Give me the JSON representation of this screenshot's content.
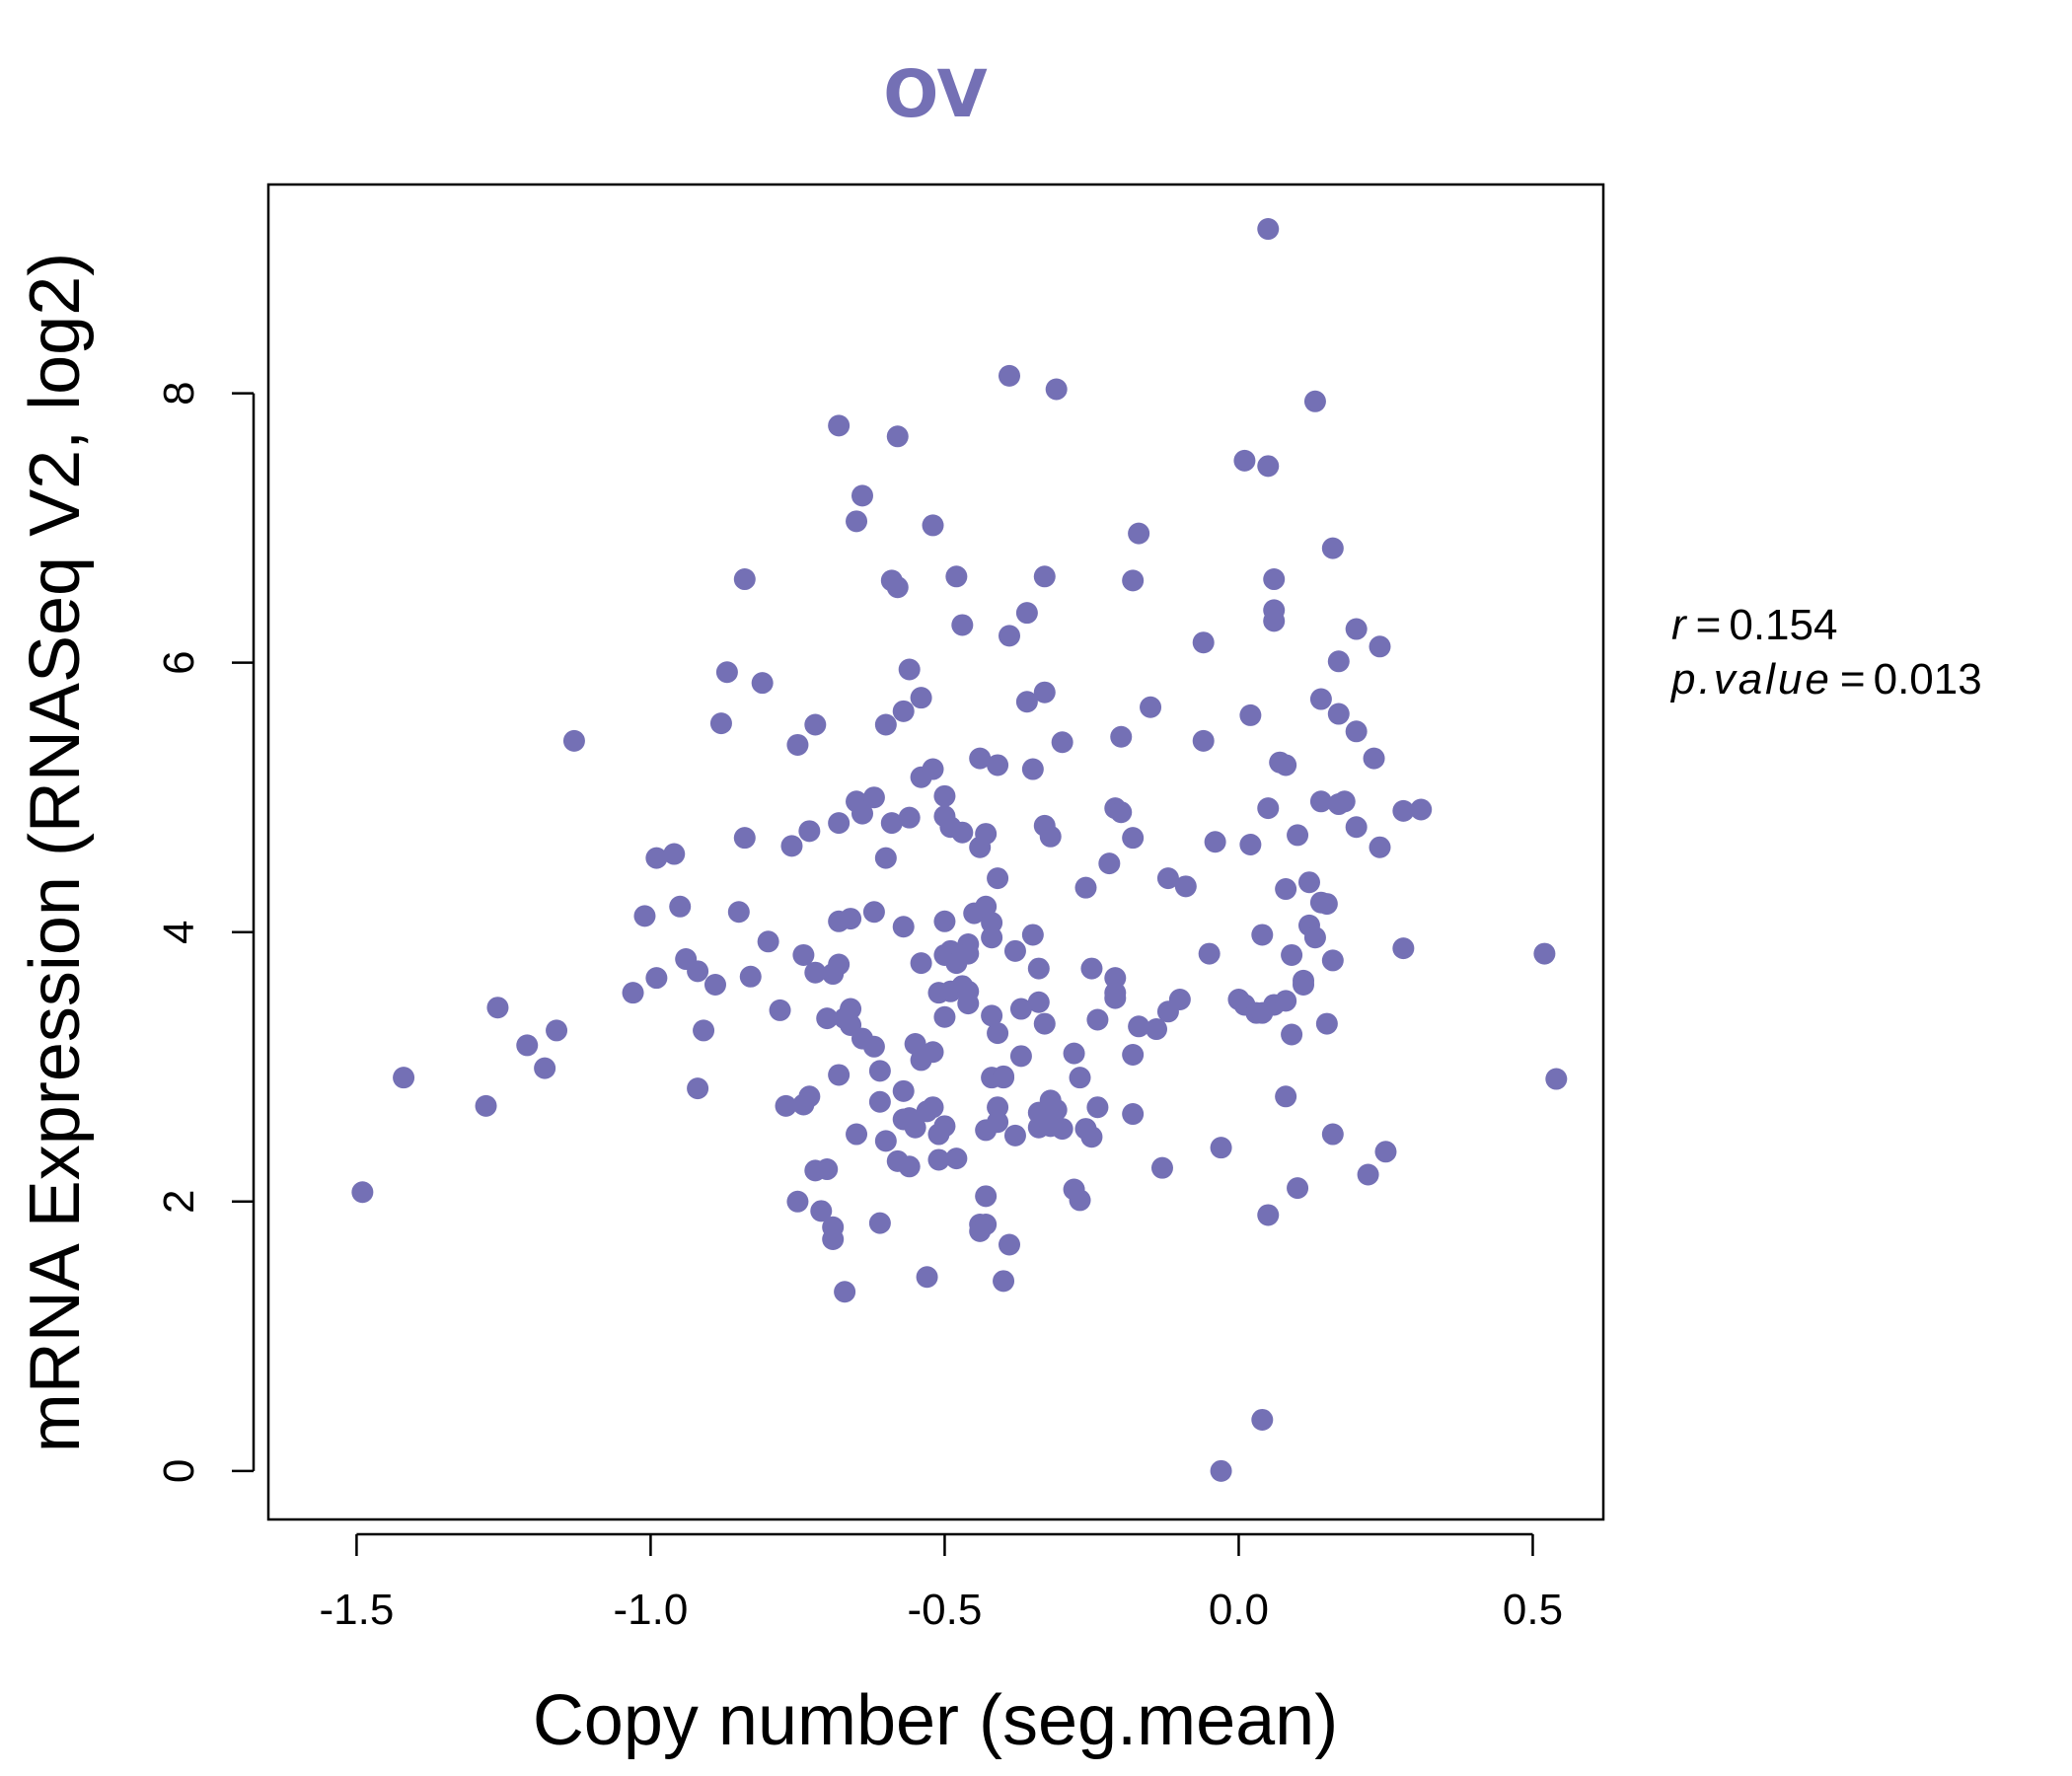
{
  "chart_data": {
    "type": "scatter",
    "title": "OV",
    "xlabel": "Copy number (seg.mean)",
    "ylabel": "mRNA Expression (RNASeq V2, log2)",
    "xlim": [
      -1.65,
      0.62
    ],
    "ylim": [
      -0.36,
      9.55
    ],
    "x_ticks": [
      -1.5,
      -1.0,
      -0.5,
      0.0,
      0.5
    ],
    "x_tick_labels": [
      "-1.5",
      "-1.0",
      "-0.5",
      "0.0",
      "0.5"
    ],
    "y_ticks": [
      0,
      2,
      4,
      6,
      8
    ],
    "y_tick_labels": [
      "0",
      "2",
      "4",
      "6",
      "8"
    ],
    "grid": false,
    "legend": "none",
    "colors": {
      "title": "#7470b5",
      "points": "#7470b5",
      "axes": "#000000"
    },
    "annotation": {
      "r_label": "r",
      "r_value": "0.154",
      "p_label": "p.value",
      "p_value": "0.013",
      "equals": "="
    },
    "series": [
      {
        "points": [
          [
            -1.49,
            2.07
          ],
          [
            -1.42,
            2.92
          ],
          [
            -1.28,
            2.71
          ],
          [
            -1.26,
            3.44
          ],
          [
            -1.21,
            3.16
          ],
          [
            -1.18,
            2.99
          ],
          [
            -1.16,
            3.27
          ],
          [
            -1.13,
            5.42
          ],
          [
            -1.03,
            3.55
          ],
          [
            -1.01,
            4.12
          ],
          [
            -0.99,
            4.55
          ],
          [
            -0.99,
            3.66
          ],
          [
            -0.96,
            4.58
          ],
          [
            -0.95,
            4.19
          ],
          [
            -0.94,
            3.8
          ],
          [
            -0.92,
            3.71
          ],
          [
            -0.92,
            2.84
          ],
          [
            -0.91,
            3.27
          ],
          [
            -0.89,
            3.61
          ],
          [
            -0.88,
            5.55
          ],
          [
            -0.87,
            5.93
          ],
          [
            -0.85,
            4.15
          ],
          [
            -0.84,
            6.62
          ],
          [
            -0.84,
            4.7
          ],
          [
            -0.83,
            3.67
          ],
          [
            -0.81,
            5.85
          ],
          [
            -0.8,
            3.93
          ],
          [
            -0.78,
            3.42
          ],
          [
            -0.77,
            2.71
          ],
          [
            -0.76,
            4.64
          ],
          [
            -0.75,
            5.39
          ],
          [
            -0.75,
            2.0
          ],
          [
            -0.74,
            3.83
          ],
          [
            -0.74,
            2.72
          ],
          [
            -0.73,
            4.75
          ],
          [
            -0.73,
            2.78
          ],
          [
            -0.72,
            3.7
          ],
          [
            -0.72,
            2.23
          ],
          [
            -0.72,
            5.54
          ],
          [
            -0.71,
            1.93
          ],
          [
            -0.7,
            2.24
          ],
          [
            -0.7,
            3.36
          ],
          [
            -0.69,
            3.69
          ],
          [
            -0.69,
            1.81
          ],
          [
            -0.69,
            1.72
          ],
          [
            -0.68,
            7.76
          ],
          [
            -0.68,
            4.81
          ],
          [
            -0.68,
            4.08
          ],
          [
            -0.68,
            3.76
          ],
          [
            -0.68,
            2.94
          ],
          [
            -0.67,
            3.36
          ],
          [
            -0.67,
            1.33
          ],
          [
            -0.66,
            3.43
          ],
          [
            -0.66,
            3.31
          ],
          [
            -0.66,
            4.1
          ],
          [
            -0.65,
            4.97
          ],
          [
            -0.65,
            7.05
          ],
          [
            -0.65,
            2.5
          ],
          [
            -0.64,
            7.24
          ],
          [
            -0.64,
            4.88
          ],
          [
            -0.64,
            3.21
          ],
          [
            -0.62,
            3.15
          ],
          [
            -0.62,
            4.15
          ],
          [
            -0.62,
            5.0
          ],
          [
            -0.61,
            2.97
          ],
          [
            -0.61,
            2.74
          ],
          [
            -0.61,
            1.84
          ],
          [
            -0.6,
            2.45
          ],
          [
            -0.6,
            5.54
          ],
          [
            -0.6,
            4.55
          ],
          [
            -0.59,
            6.61
          ],
          [
            -0.59,
            4.81
          ],
          [
            -0.58,
            7.68
          ],
          [
            -0.58,
            6.56
          ],
          [
            -0.58,
            2.3
          ],
          [
            -0.57,
            5.64
          ],
          [
            -0.57,
            4.04
          ],
          [
            -0.57,
            2.82
          ],
          [
            -0.57,
            2.61
          ],
          [
            -0.56,
            5.95
          ],
          [
            -0.56,
            4.85
          ],
          [
            -0.56,
            2.26
          ],
          [
            -0.56,
            2.62
          ],
          [
            -0.55,
            3.17
          ],
          [
            -0.55,
            2.55
          ],
          [
            -0.54,
            5.74
          ],
          [
            -0.54,
            5.15
          ],
          [
            -0.54,
            3.77
          ],
          [
            -0.54,
            3.05
          ],
          [
            -0.53,
            2.67
          ],
          [
            -0.53,
            1.44
          ],
          [
            -0.52,
            7.02
          ],
          [
            -0.52,
            5.21
          ],
          [
            -0.52,
            3.11
          ],
          [
            -0.52,
            2.7
          ],
          [
            -0.51,
            2.5
          ],
          [
            -0.51,
            3.55
          ],
          [
            -0.51,
            2.31
          ],
          [
            -0.5,
            5.01
          ],
          [
            -0.5,
            4.86
          ],
          [
            -0.5,
            4.08
          ],
          [
            -0.5,
            3.83
          ],
          [
            -0.5,
            3.37
          ],
          [
            -0.5,
            2.56
          ],
          [
            -0.49,
            3.56
          ],
          [
            -0.49,
            3.86
          ],
          [
            -0.49,
            4.78
          ],
          [
            -0.48,
            6.64
          ],
          [
            -0.48,
            3.77
          ],
          [
            -0.48,
            2.32
          ],
          [
            -0.47,
            6.28
          ],
          [
            -0.47,
            4.74
          ],
          [
            -0.47,
            3.6
          ],
          [
            -0.46,
            3.91
          ],
          [
            -0.46,
            3.84
          ],
          [
            -0.46,
            3.47
          ],
          [
            -0.46,
            3.56
          ],
          [
            -0.45,
            4.14
          ],
          [
            -0.44,
            4.63
          ],
          [
            -0.44,
            1.83
          ],
          [
            -0.44,
            1.78
          ],
          [
            -0.44,
            5.29
          ],
          [
            -0.43,
            4.19
          ],
          [
            -0.43,
            2.53
          ],
          [
            -0.43,
            2.04
          ],
          [
            -0.43,
            1.83
          ],
          [
            -0.43,
            4.73
          ],
          [
            -0.42,
            4.07
          ],
          [
            -0.42,
            3.96
          ],
          [
            -0.42,
            3.38
          ],
          [
            -0.42,
            2.92
          ],
          [
            -0.41,
            5.24
          ],
          [
            -0.41,
            4.4
          ],
          [
            -0.41,
            3.25
          ],
          [
            -0.41,
            2.7
          ],
          [
            -0.41,
            2.59
          ],
          [
            -0.4,
            1.41
          ],
          [
            -0.4,
            2.93
          ],
          [
            -0.4,
            2.92
          ],
          [
            -0.39,
            6.2
          ],
          [
            -0.39,
            1.68
          ],
          [
            -0.39,
            8.13
          ],
          [
            -0.38,
            3.86
          ],
          [
            -0.38,
            2.49
          ],
          [
            -0.37,
            3.43
          ],
          [
            -0.37,
            3.08
          ],
          [
            -0.36,
            5.71
          ],
          [
            -0.36,
            6.37
          ],
          [
            -0.35,
            5.21
          ],
          [
            -0.35,
            3.98
          ],
          [
            -0.34,
            3.73
          ],
          [
            -0.34,
            3.48
          ],
          [
            -0.34,
            2.66
          ],
          [
            -0.34,
            2.55
          ],
          [
            -0.33,
            2.62
          ],
          [
            -0.33,
            3.32
          ],
          [
            -0.33,
            4.79
          ],
          [
            -0.33,
            5.78
          ],
          [
            -0.33,
            6.64
          ],
          [
            -0.32,
            2.75
          ],
          [
            -0.32,
            2.56
          ],
          [
            -0.32,
            4.71
          ],
          [
            -0.31,
            2.68
          ],
          [
            -0.31,
            8.03
          ],
          [
            -0.3,
            2.54
          ],
          [
            -0.3,
            5.41
          ],
          [
            -0.28,
            3.1
          ],
          [
            -0.28,
            2.09
          ],
          [
            -0.27,
            2.01
          ],
          [
            -0.27,
            2.92
          ],
          [
            -0.26,
            4.33
          ],
          [
            -0.26,
            2.54
          ],
          [
            -0.25,
            2.48
          ],
          [
            -0.25,
            3.73
          ],
          [
            -0.24,
            3.35
          ],
          [
            -0.24,
            2.7
          ],
          [
            -0.22,
            4.51
          ],
          [
            -0.21,
            4.92
          ],
          [
            -0.21,
            3.51
          ],
          [
            -0.21,
            3.66
          ],
          [
            -0.21,
            3.55
          ],
          [
            -0.2,
            4.89
          ],
          [
            -0.2,
            5.45
          ],
          [
            -0.18,
            6.61
          ],
          [
            -0.18,
            3.09
          ],
          [
            -0.18,
            2.65
          ],
          [
            -0.18,
            4.7
          ],
          [
            -0.17,
            6.96
          ],
          [
            -0.17,
            3.3
          ],
          [
            -0.15,
            5.67
          ],
          [
            -0.14,
            3.28
          ],
          [
            -0.13,
            2.25
          ],
          [
            -0.12,
            4.4
          ],
          [
            -0.12,
            3.41
          ],
          [
            -0.1,
            3.5
          ],
          [
            -0.09,
            4.34
          ],
          [
            -0.06,
            6.15
          ],
          [
            -0.06,
            5.42
          ],
          [
            -0.05,
            3.84
          ],
          [
            -0.04,
            4.67
          ],
          [
            -0.03,
            2.4
          ],
          [
            -0.03,
            0.0
          ],
          [
            0.0,
            3.5
          ],
          [
            0.01,
            7.5
          ],
          [
            0.01,
            3.46
          ],
          [
            0.02,
            4.65
          ],
          [
            0.02,
            5.61
          ],
          [
            0.03,
            3.4
          ],
          [
            0.04,
            3.4
          ],
          [
            0.04,
            3.98
          ],
          [
            0.04,
            0.38
          ],
          [
            0.05,
            4.92
          ],
          [
            0.05,
            7.46
          ],
          [
            0.05,
            1.9
          ],
          [
            0.05,
            9.22
          ],
          [
            0.06,
            6.62
          ],
          [
            0.06,
            6.39
          ],
          [
            0.06,
            6.31
          ],
          [
            0.06,
            3.46
          ],
          [
            0.07,
            5.26
          ],
          [
            0.08,
            4.32
          ],
          [
            0.08,
            5.24
          ],
          [
            0.08,
            2.78
          ],
          [
            0.08,
            3.49
          ],
          [
            0.09,
            3.24
          ],
          [
            0.09,
            3.83
          ],
          [
            0.1,
            4.72
          ],
          [
            0.1,
            2.1
          ],
          [
            0.11,
            3.61
          ],
          [
            0.11,
            3.64
          ],
          [
            0.12,
            4.37
          ],
          [
            0.12,
            4.05
          ],
          [
            0.13,
            7.94
          ],
          [
            0.13,
            3.96
          ],
          [
            0.14,
            5.73
          ],
          [
            0.14,
            4.22
          ],
          [
            0.14,
            4.97
          ],
          [
            0.15,
            4.21
          ],
          [
            0.15,
            3.32
          ],
          [
            0.16,
            2.5
          ],
          [
            0.16,
            3.79
          ],
          [
            0.16,
            6.85
          ],
          [
            0.17,
            5.62
          ],
          [
            0.17,
            4.95
          ],
          [
            0.17,
            6.01
          ],
          [
            0.18,
            4.97
          ],
          [
            0.2,
            6.25
          ],
          [
            0.2,
            4.78
          ],
          [
            0.2,
            5.49
          ],
          [
            0.22,
            2.2
          ],
          [
            0.23,
            5.29
          ],
          [
            0.24,
            6.12
          ],
          [
            0.24,
            4.63
          ],
          [
            0.25,
            2.37
          ],
          [
            0.28,
            4.9
          ],
          [
            0.28,
            3.88
          ],
          [
            0.31,
            4.91
          ],
          [
            0.52,
            3.84
          ],
          [
            0.54,
            2.91
          ]
        ]
      }
    ]
  }
}
